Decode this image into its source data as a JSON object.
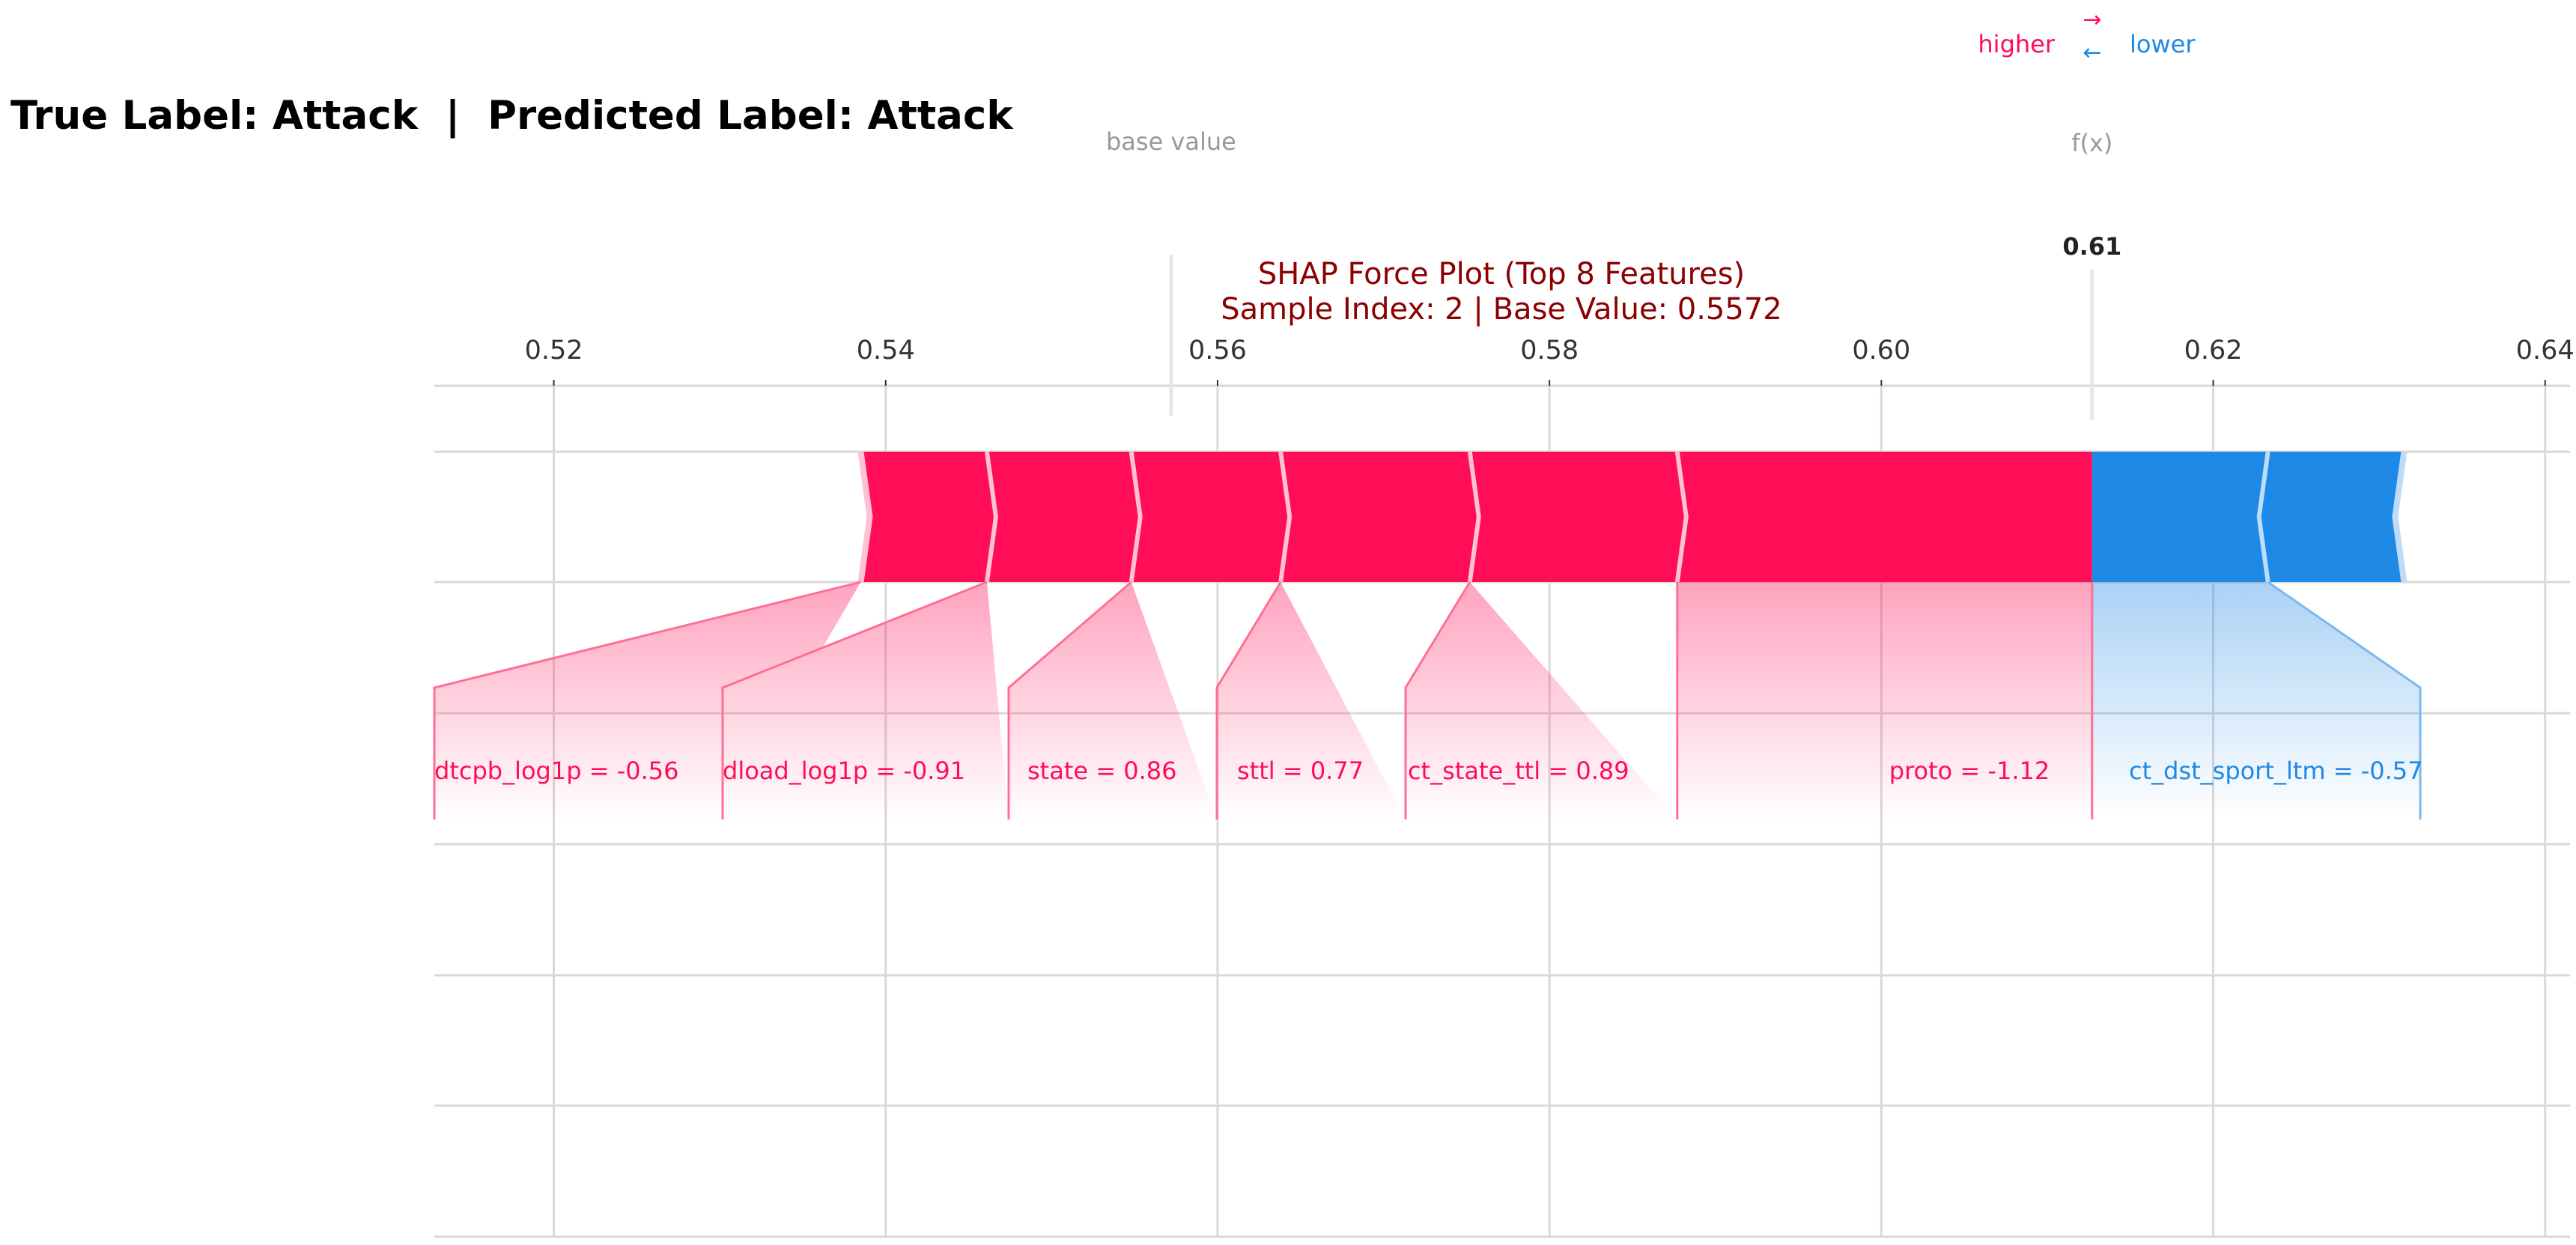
{
  "header": {
    "suptitle": "True Label: Attack  |  Predicted Label: Attack"
  },
  "chart_data": {
    "type": "bar",
    "plot_kind": "SHAP force plot",
    "title_lines": [
      "SHAP Force Plot (Top 8 Features)",
      "Sample Index: 2   |   Base Value: 0.5572"
    ],
    "legend": {
      "higher": "higher",
      "lower": "lower",
      "higher_arrow": "→",
      "lower_arrow": "←"
    },
    "base_value_label": "base value",
    "fx_label": "f(x)",
    "fx_value_text": "0.61",
    "base_value": 0.5572,
    "fx_value": 0.6127,
    "xlim": [
      0.5128,
      0.6415
    ],
    "xticks": [
      0.52,
      0.54,
      0.56,
      0.58,
      0.6,
      0.62,
      0.64
    ],
    "xtick_labels": [
      "0.52",
      "0.54",
      "0.56",
      "0.58",
      "0.60",
      "0.62",
      "0.64"
    ],
    "grid": true,
    "colors": {
      "positive": "#ff0d57",
      "negative": "#1e88e5",
      "title": "#8b0000",
      "muted": "#999999",
      "grid": "#d9d9d9"
    },
    "positive_segments": [
      {
        "from": 0.5385,
        "to": 0.5461,
        "label": "dtcpb_log1p = -0.56"
      },
      {
        "from": 0.5461,
        "to": 0.5548,
        "label": "dload_log1p = -0.91"
      },
      {
        "from": 0.5548,
        "to": 0.5638,
        "label": "state = 0.86"
      },
      {
        "from": 0.5638,
        "to": 0.5752,
        "label": "sttl = 0.77"
      },
      {
        "from": 0.5752,
        "to": 0.5877,
        "label": "ct_state_ttl = 0.89"
      },
      {
        "from": 0.5877,
        "to": 0.6127,
        "label": "proto = -1.12"
      }
    ],
    "negative_segments": [
      {
        "from": 0.6127,
        "to": 0.6233,
        "label": "ct_dst_sport_ltm = -0.57"
      },
      {
        "from": 0.6233,
        "to": 0.6315,
        "label": ""
      }
    ]
  }
}
